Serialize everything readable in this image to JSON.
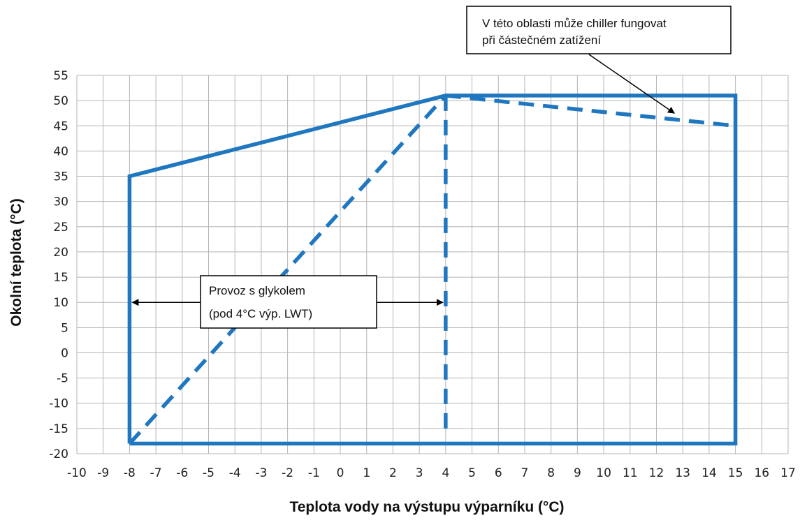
{
  "chart_data": {
    "type": "line",
    "xlabel": "Teplota vody na výstupu výparníku (°C)",
    "ylabel": "Okolní teplota (°C)",
    "xlim": [
      -10,
      17
    ],
    "ylim": [
      -20,
      55
    ],
    "x_ticks": [
      -10,
      -9,
      -8,
      -7,
      -6,
      -5,
      -4,
      -3,
      -2,
      -1,
      0,
      1,
      2,
      3,
      4,
      5,
      6,
      7,
      8,
      9,
      10,
      11,
      12,
      13,
      14,
      15,
      16,
      17
    ],
    "y_ticks": [
      -20,
      -15,
      -10,
      -5,
      0,
      5,
      10,
      15,
      20,
      25,
      30,
      35,
      40,
      45,
      50,
      55
    ],
    "grid": true,
    "series": [
      {
        "style": "solid",
        "color": "#1f77c0",
        "points": [
          [
            -8,
            -18
          ],
          [
            -8,
            35
          ],
          [
            4,
            51
          ],
          [
            15,
            51
          ],
          [
            15,
            -18
          ],
          [
            -8,
            -18
          ]
        ]
      },
      {
        "style": "dashed",
        "color": "#1f77c0",
        "points": [
          [
            -8,
            -18
          ],
          [
            4,
            51
          ]
        ]
      },
      {
        "style": "dashed",
        "color": "#1f77c0",
        "points": [
          [
            4,
            51
          ],
          [
            4,
            -15
          ]
        ]
      },
      {
        "style": "dashed",
        "color": "#1f77c0",
        "points": [
          [
            4,
            51
          ],
          [
            15,
            45
          ]
        ]
      }
    ],
    "annotations": [
      {
        "id": "glycol",
        "lines": [
          "Provoz s glykolem",
          "(pod 4°C výp. LWT)"
        ],
        "arrows_to": [
          [
            -8,
            10
          ],
          [
            4,
            10
          ]
        ]
      },
      {
        "id": "partial-load",
        "lines": [
          "V této oblasti může chiller fungovat",
          "při částečném zatížení"
        ],
        "arrows_to": [
          [
            13,
            47.5
          ]
        ]
      }
    ]
  }
}
